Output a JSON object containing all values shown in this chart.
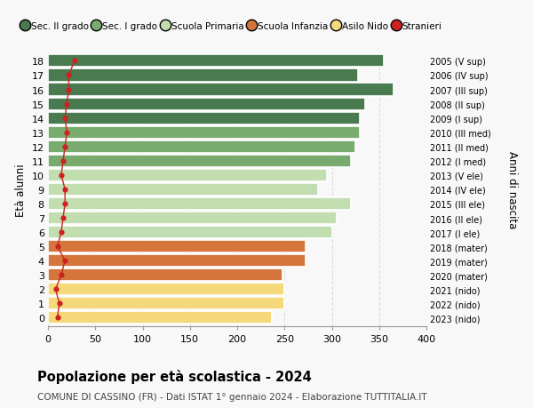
{
  "ages": [
    18,
    17,
    16,
    15,
    14,
    13,
    12,
    11,
    10,
    9,
    8,
    7,
    6,
    5,
    4,
    3,
    2,
    1,
    0
  ],
  "bar_values": [
    355,
    328,
    365,
    335,
    330,
    330,
    325,
    320,
    295,
    285,
    320,
    305,
    300,
    272,
    272,
    248,
    250,
    250,
    237
  ],
  "stranieri": [
    28,
    22,
    22,
    20,
    18,
    20,
    18,
    16,
    14,
    18,
    18,
    16,
    14,
    10,
    18,
    14,
    8,
    12,
    10
  ],
  "right_labels": [
    "2005 (V sup)",
    "2006 (IV sup)",
    "2007 (III sup)",
    "2008 (II sup)",
    "2009 (I sup)",
    "2010 (III med)",
    "2011 (II med)",
    "2012 (I med)",
    "2013 (V ele)",
    "2014 (IV ele)",
    "2015 (III ele)",
    "2016 (II ele)",
    "2017 (I ele)",
    "2018 (mater)",
    "2019 (mater)",
    "2020 (mater)",
    "2021 (nido)",
    "2022 (nido)",
    "2023 (nido)"
  ],
  "bar_colors": [
    "#4a7a50",
    "#4a7a50",
    "#4a7a50",
    "#4a7a50",
    "#4a7a50",
    "#7aab6e",
    "#7aab6e",
    "#7aab6e",
    "#c2ddb0",
    "#c2ddb0",
    "#c2ddb0",
    "#c2ddb0",
    "#c2ddb0",
    "#d4763b",
    "#d4763b",
    "#d4763b",
    "#f5d87a",
    "#f5d87a",
    "#f5d87a"
  ],
  "legend_labels": [
    "Sec. II grado",
    "Sec. I grado",
    "Scuola Primaria",
    "Scuola Infanzia",
    "Asilo Nido",
    "Stranieri"
  ],
  "legend_colors": [
    "#4a7a50",
    "#7aab6e",
    "#c2ddb0",
    "#d4763b",
    "#f5d87a",
    "#cc2222"
  ],
  "stranieri_color": "#cc2222",
  "title": "Popolazione per età scolastica - 2024",
  "subtitle": "COMUNE DI CASSINO (FR) - Dati ISTAT 1° gennaio 2024 - Elaborazione TUTTITALIA.IT",
  "ylabel": "Età alunni",
  "right_ylabel": "Anni di nascita",
  "xlim": [
    0,
    400
  ],
  "xticks": [
    0,
    50,
    100,
    150,
    200,
    250,
    300,
    350,
    400
  ],
  "background_color": "#f8f8f8",
  "grid_color": "#dddddd"
}
